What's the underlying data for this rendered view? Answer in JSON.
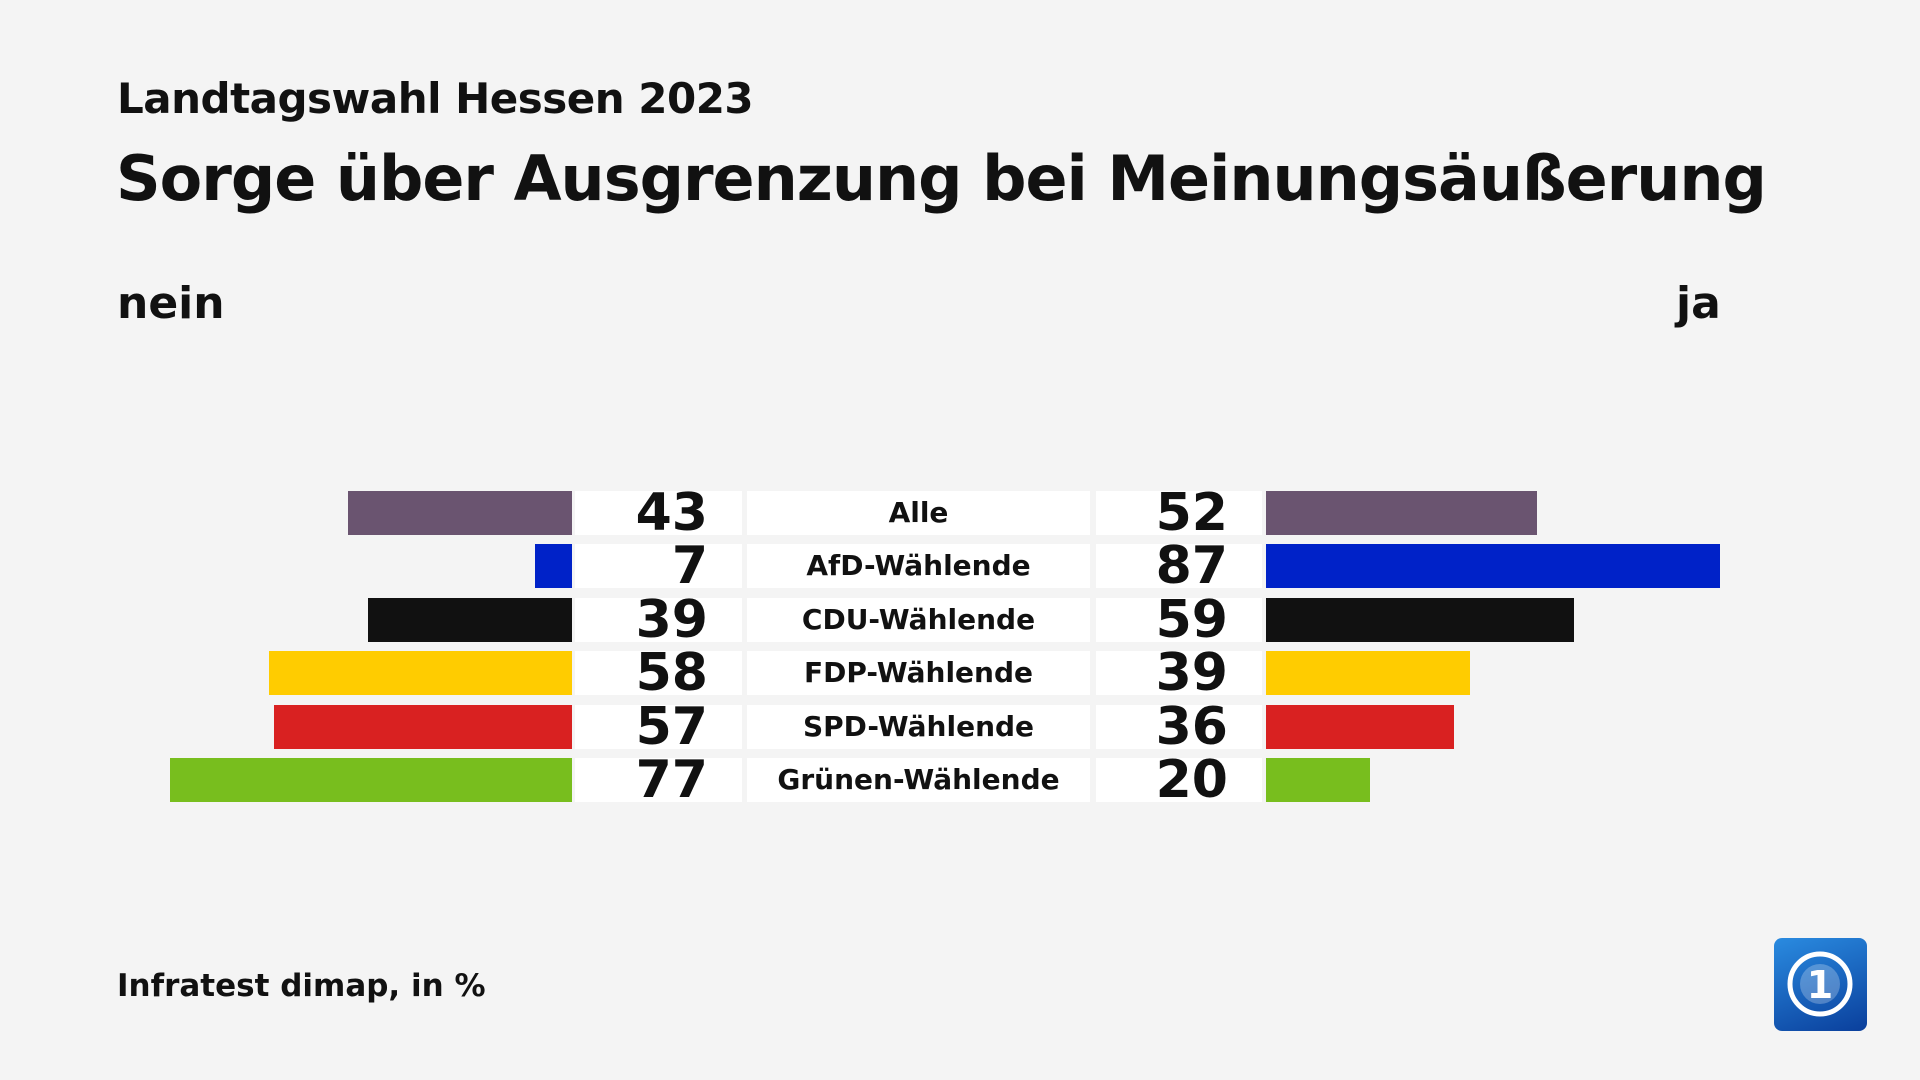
{
  "subtitle": "Landtagswahl Hessen 2023",
  "title": "Sorge über Ausgrenzung bei Meinungsäußerung",
  "source": "Infratest dimap, in %",
  "logo": "ARD tagesschau 1",
  "chart_data": {
    "type": "bar",
    "left_label": "nein",
    "right_label": "ja",
    "categories": [
      "Alle",
      "AfD-Wählende",
      "CDU-Wählende",
      "FDP-Wählende",
      "SPD-Wählende",
      "Grünen-Wählende"
    ],
    "series": [
      {
        "name": "nein",
        "values": [
          43,
          7,
          39,
          58,
          57,
          77
        ]
      },
      {
        "name": "ja",
        "values": [
          52,
          87,
          59,
          39,
          36,
          20
        ]
      }
    ],
    "colors": [
      "#6a5470",
      "#0022c8",
      "#111111",
      "#ffcc00",
      "#d92121",
      "#78be1e"
    ]
  }
}
